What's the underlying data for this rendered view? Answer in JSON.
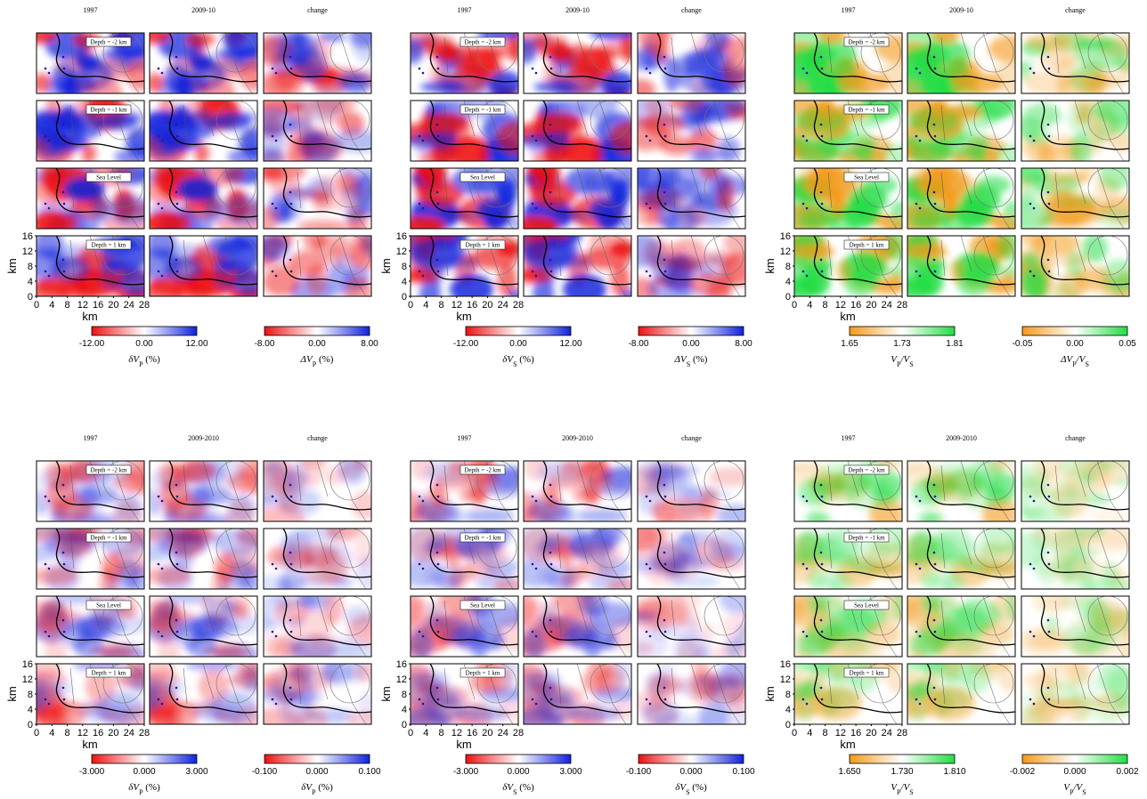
{
  "blocks": [
    {
      "headers": [
        "1997",
        "2009-10",
        "change"
      ],
      "depths": [
        "Depth = -2 km",
        "Depth = -1 km",
        "Sea Level",
        "Depth = 1 km"
      ],
      "y_label": "km",
      "x_label": "km",
      "yticks": [
        0,
        4,
        8,
        12,
        16
      ],
      "xticks": [
        0,
        4,
        8,
        12,
        16,
        20,
        24,
        28
      ],
      "colorbars": [
        {
          "ticks": [
            "-12.00",
            "0.00",
            "12.00"
          ],
          "label": [
            {
              "t": "δV"
            },
            {
              "t": "P",
              "sub": true
            },
            {
              "t": " (%)"
            }
          ],
          "colors": [
            "#ee1111",
            "#ffffff",
            "#1122dd"
          ]
        },
        {
          "ticks": [
            "-8.00",
            "0.00",
            "8.00"
          ],
          "label": [
            {
              "t": "ΔV"
            },
            {
              "t": "P",
              "sub": true
            },
            {
              "t": " (%)"
            }
          ],
          "colors": [
            "#ee1111",
            "#ffffff",
            "#1122dd"
          ]
        }
      ]
    },
    {
      "headers": [
        "1997",
        "2009-10",
        "change"
      ],
      "depths": [
        "Depth = -2 km",
        "Depth = -1 km",
        "Sea Level",
        "Depth = 1 km"
      ],
      "y_label": "km",
      "x_label": "km",
      "yticks": [
        0,
        4,
        8,
        12,
        16
      ],
      "xticks": [
        0,
        4,
        8,
        12,
        16,
        20,
        24,
        28
      ],
      "colorbars": [
        {
          "ticks": [
            "-12.00",
            "0.00",
            "12.00"
          ],
          "label": [
            {
              "t": "δV"
            },
            {
              "t": "S",
              "sub": true
            },
            {
              "t": " (%)"
            }
          ],
          "colors": [
            "#ee1111",
            "#ffffff",
            "#1122dd"
          ]
        },
        {
          "ticks": [
            "-8.00",
            "0.00",
            "8.00"
          ],
          "label": [
            {
              "t": "ΔV"
            },
            {
              "t": "S",
              "sub": true
            },
            {
              "t": " (%)"
            }
          ],
          "colors": [
            "#ee1111",
            "#ffffff",
            "#1122dd"
          ]
        }
      ]
    },
    {
      "headers": [
        "1997",
        "2009-10",
        "change"
      ],
      "depths": [
        "Depth = -2 km",
        "Depth = -1 km",
        "Sea Level",
        "Depth = 1 km"
      ],
      "y_label": "km",
      "x_label": "km",
      "yticks": [
        0,
        4,
        8,
        12,
        16
      ],
      "xticks": [
        0,
        4,
        8,
        12,
        16,
        20,
        24,
        28
      ],
      "colorbars": [
        {
          "ticks": [
            "1.65",
            "1.73",
            "1.81"
          ],
          "label": [
            {
              "t": "V"
            },
            {
              "t": "P",
              "sub": true
            },
            {
              "t": "/V"
            },
            {
              "t": "S",
              "sub": true
            }
          ],
          "colors": [
            "#f39a1a",
            "#ffffff",
            "#22dd44"
          ]
        },
        {
          "ticks": [
            "-0.05",
            "0.00",
            "0.05"
          ],
          "label": [
            {
              "t": "ΔV"
            },
            {
              "t": "P",
              "sub": true
            },
            {
              "t": "/V"
            },
            {
              "t": "S",
              "sub": true
            }
          ],
          "colors": [
            "#f39a1a",
            "#ffffff",
            "#22dd44"
          ]
        }
      ]
    },
    {
      "headers": [
        "1997",
        "2009-2010",
        "change"
      ],
      "depths": [
        "Depth = -2 km",
        "Depth = -1 km",
        "Sea Level",
        "Depth = 1 km"
      ],
      "y_label": "km",
      "x_label": "km",
      "yticks": [
        0,
        4,
        8,
        12,
        16
      ],
      "xticks": [
        0,
        4,
        8,
        12,
        16,
        20,
        24,
        28
      ],
      "colorbars": [
        {
          "ticks": [
            "-3.000",
            "0.000",
            "3.000"
          ],
          "label": [
            {
              "t": "δV"
            },
            {
              "t": "P",
              "sub": true
            },
            {
              "t": " (%)"
            }
          ],
          "colors": [
            "#ee1111",
            "#ffffff",
            "#1122dd"
          ]
        },
        {
          "ticks": [
            "-0.100",
            "0.000",
            "0.100"
          ],
          "label": [
            {
              "t": "δV"
            },
            {
              "t": "P",
              "sub": true
            },
            {
              "t": " (%)"
            }
          ],
          "colors": [
            "#ee1111",
            "#ffffff",
            "#1122dd"
          ]
        }
      ]
    },
    {
      "headers": [
        "1997",
        "2009-2010",
        "change"
      ],
      "depths": [
        "Depth = -2 km",
        "Depth = -1 km",
        "Sea Level",
        "Depth = 1 km"
      ],
      "y_label": "km",
      "x_label": "km",
      "yticks": [
        0,
        4,
        8,
        12,
        16
      ],
      "xticks": [
        0,
        4,
        8,
        12,
        16,
        20,
        24,
        28
      ],
      "colorbars": [
        {
          "ticks": [
            "-3.000",
            "0.000",
            "3.000"
          ],
          "label": [
            {
              "t": "δV"
            },
            {
              "t": "S",
              "sub": true
            },
            {
              "t": " (%)"
            }
          ],
          "colors": [
            "#ee1111",
            "#ffffff",
            "#1122dd"
          ]
        },
        {
          "ticks": [
            "-0.100",
            "0.000",
            "0.100"
          ],
          "label": [
            {
              "t": "δV"
            },
            {
              "t": "S",
              "sub": true
            },
            {
              "t": " (%)"
            }
          ],
          "colors": [
            "#ee1111",
            "#ffffff",
            "#1122dd"
          ]
        }
      ]
    },
    {
      "headers": [
        "1997",
        "2009-2010",
        "change"
      ],
      "depths": [
        "Depth = -2 km",
        "Depth = -1 km",
        "Sea Level",
        "Depth = 1 km"
      ],
      "y_label": "km",
      "x_label": "km",
      "yticks": [
        0,
        4,
        8,
        12,
        16
      ],
      "xticks": [
        0,
        4,
        8,
        12,
        16,
        20,
        24,
        28
      ],
      "colorbars": [
        {
          "ticks": [
            "1.650",
            "1.730",
            "1.810"
          ],
          "label": [
            {
              "t": "V"
            },
            {
              "t": "P",
              "sub": true
            },
            {
              "t": "/V"
            },
            {
              "t": "S",
              "sub": true
            }
          ],
          "colors": [
            "#f39a1a",
            "#ffffff",
            "#22dd44"
          ]
        },
        {
          "ticks": [
            "-0.002",
            "0.000",
            "0.002"
          ],
          "label": [
            {
              "t": "V"
            },
            {
              "t": "P",
              "sub": true
            },
            {
              "t": "/V"
            },
            {
              "t": "S",
              "sub": true
            }
          ],
          "colors": [
            "#f39a1a",
            "#ffffff",
            "#22dd44"
          ]
        }
      ]
    }
  ]
}
